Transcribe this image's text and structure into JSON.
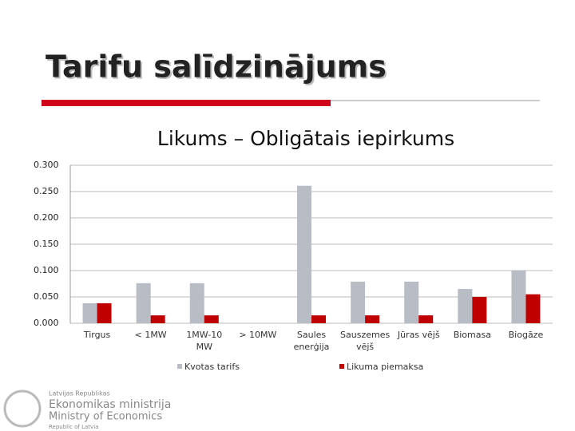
{
  "slide_title": "Tarifu salīdzinājums",
  "logo": [
    "Latvijas Republikas",
    "Ekonomikas ministrija",
    "Ministry of Economics",
    "Republic of Latvia"
  ],
  "chart_data": {
    "type": "bar",
    "title": "Likums – Obligātais iepirkums",
    "categories": [
      "Tirgus",
      "< 1MW",
      "1MW-10 MW",
      "> 10MW",
      "Saules enerģija",
      "Sauszemes vējš",
      "Jūras vējš",
      "Biomasa",
      "Biogāze"
    ],
    "series": [
      {
        "name": "Kvotas tarifs",
        "color": "#b8bcc4",
        "values": [
          0.038,
          0.076,
          0.076,
          null,
          0.261,
          0.079,
          0.079,
          0.065,
          0.1
        ]
      },
      {
        "name": "Likuma piemaksa",
        "color": "#c00000",
        "values": [
          0.038,
          0.015,
          0.015,
          null,
          0.015,
          0.015,
          0.015,
          0.05,
          0.055
        ]
      }
    ],
    "ylim": [
      0,
      0.3
    ],
    "yticks": [
      {
        "value": 0,
        "label": "0.000"
      },
      {
        "value": 0.05,
        "label": "0.050"
      },
      {
        "value": 0.1,
        "label": "0.100"
      },
      {
        "value": 0.15,
        "label": "0.150"
      },
      {
        "value": 0.2,
        "label": "0.200"
      },
      {
        "value": 0.25,
        "label": "0.250"
      },
      {
        "value": 0.3,
        "label": "0.300"
      }
    ],
    "grid": true,
    "legend": "bottom"
  }
}
